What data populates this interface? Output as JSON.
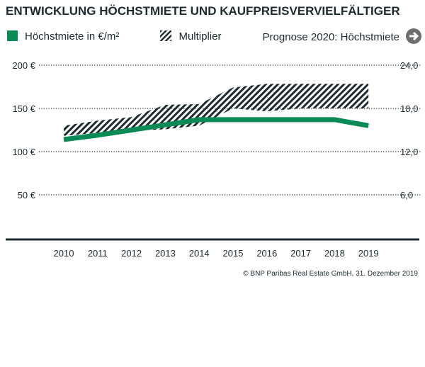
{
  "title": "ENTWICKLUNG HÖCHSTMIETE UND KAUFPREISVERVIELFÄLTIGER",
  "legend": {
    "green": "Höchstmiete in €/m²",
    "hatch": "Multiplier",
    "forecast": "Prognose 2020: Höchstmiete"
  },
  "copyright": "© BNP Paribas Real Estate GmbH, 31. Dezember 2019",
  "colors": {
    "green": "#0a8a55",
    "dark": "#1d2b30",
    "arrow": "#6e6e6e"
  },
  "chart_data": {
    "type": "line",
    "categories": [
      "2010",
      "2011",
      "2012",
      "2013",
      "2014",
      "2015",
      "2016",
      "2017",
      "2018",
      "2019"
    ],
    "ylim": [
      0,
      200
    ],
    "y2lim": [
      0,
      24
    ],
    "yticks": [
      "50 €",
      "100 €",
      "150 €",
      "200 €"
    ],
    "y2ticks": [
      "6,0",
      "12,0",
      "18,0",
      "24,0"
    ],
    "grid": true,
    "legend_position": "top",
    "series": [
      {
        "name": "Höchstmiete in €/m²",
        "axis": "left",
        "values": [
          114,
          119,
          125,
          131,
          137,
          137,
          137,
          137,
          137,
          130
        ]
      },
      {
        "name": "Multiplier",
        "axis": "right",
        "type": "band",
        "upper": [
          15.6,
          16.3,
          16.8,
          18.5,
          18.6,
          20.9,
          21.4,
          21.4,
          21.4,
          21.4
        ],
        "lower": [
          14.2,
          14.6,
          14.9,
          15.1,
          15.6,
          18.0,
          17.6,
          18.0,
          18.0,
          18.0
        ]
      }
    ]
  }
}
